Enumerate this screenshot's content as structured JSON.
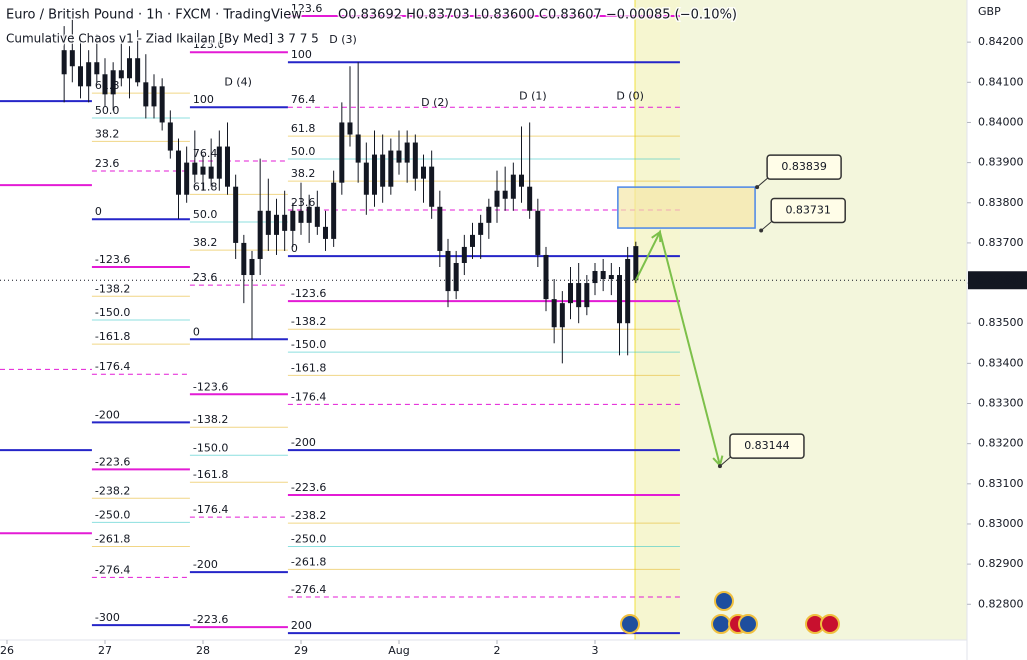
{
  "chart_data": {
    "type": "candlestick",
    "title": "Euro / British Pound · 1h · FXCM · TradingView",
    "ohlc": "O0.83692 H0.83703 L0.83600 C0.83607 −0.00085 (−0.10%)",
    "subtitle": "Cumulative Chaos v1 - Ziad Ikailan [By Med] 3 7 7 5",
    "currency": "GBP",
    "color": "#131722",
    "x": [
      14,
      16,
      18,
      20,
      22,
      24,
      26,
      28,
      30,
      32,
      34,
      36,
      38,
      40,
      42,
      44,
      46,
      48,
      50,
      52,
      54,
      56,
      58,
      60,
      62,
      64,
      66,
      68,
      70,
      72,
      74,
      76,
      78,
      80,
      82,
      84,
      86,
      88,
      90,
      92,
      94,
      96,
      98,
      100,
      102,
      104,
      106,
      108,
      110,
      112,
      114,
      116,
      118,
      120,
      122,
      124,
      126,
      128,
      130,
      132,
      134,
      136,
      138,
      140,
      142,
      144,
      146,
      148,
      150,
      152,
      154
    ],
    "open": [
      0.8412,
      0.8418,
      0.8414,
      0.8409,
      0.8415,
      0.8412,
      0.8407,
      0.8413,
      0.8411,
      0.8416,
      0.841,
      0.8404,
      0.8409,
      0.84,
      0.8393,
      0.8382,
      0.839,
      0.8387,
      0.8389,
      0.8386,
      0.8394,
      0.8384,
      0.837,
      0.8362,
      0.8366,
      0.8378,
      0.8372,
      0.8377,
      0.8373,
      0.8378,
      0.8375,
      0.8379,
      0.8374,
      0.8371,
      0.8385,
      0.84,
      0.8397,
      0.839,
      0.8382,
      0.8392,
      0.8384,
      0.8393,
      0.839,
      0.8395,
      0.8386,
      0.8389,
      0.8379,
      0.8368,
      0.8358,
      0.8365,
      0.8369,
      0.8372,
      0.8375,
      0.8379,
      0.8383,
      0.8381,
      0.8387,
      0.8384,
      0.8378,
      0.8367,
      0.8356,
      0.8349,
      0.8355,
      0.836,
      0.8354,
      0.836,
      0.8363,
      0.8361,
      0.8362,
      0.835,
      0.83692
    ],
    "high": [
      0.8424,
      0.8426,
      0.8421,
      0.8418,
      0.8422,
      0.8416,
      0.8415,
      0.842,
      0.8419,
      0.8423,
      0.8417,
      0.8412,
      0.8411,
      0.8403,
      0.8396,
      0.8394,
      0.8398,
      0.8392,
      0.8396,
      0.8398,
      0.84,
      0.8387,
      0.8372,
      0.8368,
      0.8391,
      0.8386,
      0.8381,
      0.8383,
      0.838,
      0.8385,
      0.8382,
      0.8383,
      0.8378,
      0.8388,
      0.8405,
      0.8414,
      0.8415,
      0.8395,
      0.8398,
      0.8397,
      0.8396,
      0.8398,
      0.8398,
      0.8397,
      0.8392,
      0.8393,
      0.8383,
      0.8371,
      0.8368,
      0.8372,
      0.8375,
      0.8377,
      0.8381,
      0.8388,
      0.8389,
      0.839,
      0.8399,
      0.84,
      0.8381,
      0.8369,
      0.8361,
      0.8358,
      0.8364,
      0.8365,
      0.8362,
      0.8365,
      0.8366,
      0.8365,
      0.8364,
      0.8369,
      0.83703
    ],
    "low": [
      0.8405,
      0.841,
      0.8406,
      0.8405,
      0.841,
      0.8404,
      0.8403,
      0.8409,
      0.8406,
      0.8409,
      0.8401,
      0.8401,
      0.8398,
      0.8391,
      0.8376,
      0.838,
      0.8385,
      0.8383,
      0.8384,
      0.8383,
      0.8382,
      0.8366,
      0.8355,
      0.8346,
      0.8362,
      0.8368,
      0.8367,
      0.8368,
      0.8369,
      0.8372,
      0.837,
      0.8372,
      0.8368,
      0.8369,
      0.8382,
      0.8394,
      0.8385,
      0.8377,
      0.8379,
      0.838,
      0.8382,
      0.8387,
      0.8385,
      0.8383,
      0.838,
      0.8376,
      0.8364,
      0.8354,
      0.8356,
      0.8362,
      0.8366,
      0.8366,
      0.8371,
      0.8375,
      0.8378,
      0.8378,
      0.838,
      0.8376,
      0.8364,
      0.8353,
      0.8345,
      0.834,
      0.8351,
      0.835,
      0.8352,
      0.8357,
      0.8358,
      0.8357,
      0.8342,
      0.8342,
      0.836
    ],
    "close": [
      0.8418,
      0.8414,
      0.8409,
      0.8415,
      0.8412,
      0.8407,
      0.8413,
      0.8411,
      0.8416,
      0.841,
      0.8404,
      0.8409,
      0.84,
      0.8393,
      0.8382,
      0.839,
      0.8387,
      0.8389,
      0.8386,
      0.8394,
      0.8384,
      0.837,
      0.8362,
      0.8366,
      0.8378,
      0.8372,
      0.8377,
      0.8373,
      0.8378,
      0.8375,
      0.8379,
      0.8374,
      0.8371,
      0.8385,
      0.84,
      0.8397,
      0.839,
      0.8382,
      0.8392,
      0.8384,
      0.8393,
      0.839,
      0.8395,
      0.8386,
      0.8389,
      0.8379,
      0.8368,
      0.8358,
      0.8365,
      0.8369,
      0.8372,
      0.8375,
      0.8379,
      0.8383,
      0.8381,
      0.8387,
      0.8384,
      0.8378,
      0.8367,
      0.8356,
      0.8349,
      0.8355,
      0.836,
      0.8354,
      0.836,
      0.8363,
      0.8361,
      0.8362,
      0.835,
      0.8366,
      0.83607
    ],
    "xlim": [
      -1.71,
      235.1
    ],
    "ylim": [
      0.82711,
      0.84305
    ],
    "xticks": [
      {
        "value": 0,
        "label": "26"
      },
      {
        "value": 24,
        "label": "27"
      },
      {
        "value": 48,
        "label": "28"
      },
      {
        "value": 72,
        "label": "29"
      },
      {
        "value": 96,
        "label": "Aug"
      },
      {
        "value": 120,
        "label": "2"
      },
      {
        "value": 144,
        "label": "3"
      }
    ],
    "yticks": [
      {
        "value": 0.828,
        "label": "0.82800"
      },
      {
        "value": 0.829,
        "label": "0.82900"
      },
      {
        "value": 0.83,
        "label": "0.83000"
      },
      {
        "value": 0.831,
        "label": "0.83100"
      },
      {
        "value": 0.832,
        "label": "0.83200"
      },
      {
        "value": 0.833,
        "label": "0.83300"
      },
      {
        "value": 0.834,
        "label": "0.83400"
      },
      {
        "value": 0.835,
        "label": "0.83500"
      },
      {
        "value": 0.836,
        "label": "0.83600"
      },
      {
        "value": 0.837,
        "label": "0.83700"
      },
      {
        "value": 0.838,
        "label": "0.83800"
      },
      {
        "value": 0.839,
        "label": "0.83900"
      },
      {
        "value": 0.84,
        "label": "0.84000"
      },
      {
        "value": 0.841,
        "label": "0.84100"
      },
      {
        "value": 0.842,
        "label": "0.84200"
      }
    ],
    "last_price": 0.83607,
    "fib_groups": [
      {
        "x_range": [
          -1.71,
          20.8
        ],
        "levels": [
          {
            "price": 0.84053,
            "color": "#2525c8",
            "bold": true
          },
          {
            "price": 0.83844,
            "color": "#e31bd5",
            "bold": true
          },
          {
            "price": 0.83385,
            "color": "#e31bd5",
            "dashed": true
          },
          {
            "price": 0.83184,
            "color": "#2525c8",
            "bold": true
          },
          {
            "price": 0.82977,
            "color": "#e31bd5",
            "bold": true
          }
        ]
      },
      {
        "x_range": [
          20.8,
          44.8
        ],
        "levels": [
          {
            "label": "61.8",
            "price": 0.84073,
            "color": "#e6b422"
          },
          {
            "label": "50.0",
            "price": 0.84011,
            "color": "#2ec4c4"
          },
          {
            "label": "38.2",
            "price": 0.83953,
            "color": "#e6b422"
          },
          {
            "label": "23.6",
            "price": 0.83879,
            "color": "#e31bd5",
            "dashed": true
          },
          {
            "label": "0",
            "price": 0.83759,
            "color": "#2525c8",
            "bold": true
          },
          {
            "label": "-123.6",
            "price": 0.8364,
            "color": "#e31bd5",
            "bold": true
          },
          {
            "label": "-138.2",
            "price": 0.83567,
            "color": "#e6b422"
          },
          {
            "label": "-150.0",
            "price": 0.83508,
            "color": "#2ec4c4"
          },
          {
            "label": "-161.8",
            "price": 0.83448,
            "color": "#e6b422"
          },
          {
            "label": "-176.4",
            "price": 0.83373,
            "color": "#e31bd5",
            "dashed": true
          },
          {
            "label": "-200",
            "price": 0.83253,
            "color": "#2525c8",
            "bold": true
          },
          {
            "label": "-223.6",
            "price": 0.83136,
            "color": "#e31bd5",
            "bold": true
          },
          {
            "label": "-238.2",
            "price": 0.83064,
            "color": "#e6b422"
          },
          {
            "label": "-250.0",
            "price": 0.83004,
            "color": "#2ec4c4"
          },
          {
            "label": "-261.8",
            "price": 0.82944,
            "color": "#e6b422"
          },
          {
            "label": "-276.4",
            "price": 0.82867,
            "color": "#e31bd5",
            "dashed": true
          },
          {
            "label": "-300",
            "price": 0.82748,
            "color": "#2525c8",
            "bold": true
          }
        ]
      },
      {
        "x_range": [
          44.8,
          68.8
        ],
        "levels": [
          {
            "label": "123.6",
            "price": 0.84175,
            "color": "#e31bd5",
            "bold": true
          },
          {
            "label": "100",
            "price": 0.84038,
            "color": "#2525c8",
            "bold": true
          },
          {
            "label": "76.4",
            "price": 0.83904,
            "color": "#e31bd5",
            "dashed": true
          },
          {
            "label": "61.8",
            "price": 0.83821,
            "color": "#e6b422"
          },
          {
            "label": "50.0",
            "price": 0.83752,
            "color": "#2ec4c4"
          },
          {
            "label": "38.2",
            "price": 0.83682,
            "color": "#e6b422"
          },
          {
            "label": "23.6",
            "price": 0.83595,
            "color": "#e31bd5",
            "dashed": true
          },
          {
            "label": "0",
            "price": 0.8346,
            "color": "#2525c8",
            "bold": true
          },
          {
            "label": "-123.6",
            "price": 0.83323,
            "color": "#e31bd5",
            "bold": true
          },
          {
            "label": "-138.2",
            "price": 0.83241,
            "color": "#e6b422"
          },
          {
            "label": "-150.0",
            "price": 0.83171,
            "color": "#2ec4c4"
          },
          {
            "label": "-161.8",
            "price": 0.83104,
            "color": "#e6b422"
          },
          {
            "label": "-176.4",
            "price": 0.83017,
            "color": "#e31bd5",
            "dashed": true
          },
          {
            "label": "-200",
            "price": 0.8288,
            "color": "#2525c8",
            "bold": true
          },
          {
            "label": "-223.6",
            "price": 0.82743,
            "color": "#e31bd5",
            "bold": true
          }
        ]
      },
      {
        "x_range": [
          68.8,
          164.8
        ],
        "levels": [
          {
            "label": "123.6",
            "price": 0.84265,
            "color": "#e31bd5",
            "bold": true
          },
          {
            "label": "100",
            "price": 0.8415,
            "color": "#2525c8",
            "bold": true
          },
          {
            "label": "76.4",
            "price": 0.84038,
            "color": "#e31bd5",
            "dashed": true
          },
          {
            "label": "61.8",
            "price": 0.83966,
            "color": "#e6b422"
          },
          {
            "label": "50.0",
            "price": 0.83909,
            "color": "#2ec4c4"
          },
          {
            "label": "38.2",
            "price": 0.83854,
            "color": "#e6b422"
          },
          {
            "label": "23.6",
            "price": 0.83782,
            "color": "#e31bd5",
            "dashed": true
          },
          {
            "label": "0",
            "price": 0.83667,
            "color": "#2525c8",
            "bold": true
          },
          {
            "label": "-123.6",
            "price": 0.83555,
            "color": "#e31bd5",
            "bold": true
          },
          {
            "label": "-138.2",
            "price": 0.83485,
            "color": "#e6b422"
          },
          {
            "label": "-150.0",
            "price": 0.83428,
            "color": "#2ec4c4"
          },
          {
            "label": "-161.8",
            "price": 0.8337,
            "color": "#e6b422"
          },
          {
            "label": "-176.4",
            "price": 0.83298,
            "color": "#e31bd5",
            "dashed": true
          },
          {
            "label": "-200",
            "price": 0.83184,
            "color": "#2525c8",
            "bold": true
          },
          {
            "label": "-223.6",
            "price": 0.83072,
            "color": "#e31bd5",
            "bold": true
          },
          {
            "label": "-238.2",
            "price": 0.83002,
            "color": "#e6b422"
          },
          {
            "label": "-250.0",
            "price": 0.82944,
            "color": "#2ec4c4"
          },
          {
            "label": "-261.8",
            "price": 0.82887,
            "color": "#e6b422"
          },
          {
            "label": "-276.4",
            "price": 0.82818,
            "color": "#e31bd5",
            "dashed": true
          },
          {
            "label": "200",
            "price": 0.82728,
            "color": "#2525c8",
            "bold": true
          }
        ]
      }
    ],
    "markers": [
      {
        "label": "D (4)",
        "x": 56.6,
        "price": 0.841,
        "color": "#f09a1e"
      },
      {
        "label": "D (3)",
        "x": 82.3,
        "price": 0.84205,
        "color": "#f09a1e"
      },
      {
        "label": "D (2)",
        "x": 104.8,
        "price": 0.84048,
        "color": "#f09a1e"
      },
      {
        "label": "D (1)",
        "x": 128.8,
        "price": 0.84065,
        "color": "#f09a1e"
      },
      {
        "label": "D (0)",
        "x": 152.6,
        "price": 0.84065,
        "color": "#f09a1e"
      }
    ],
    "zone": {
      "x_range": [
        149.6,
        183.2
      ],
      "price_range": [
        0.83737,
        0.83839
      ],
      "color": "#4a86e8"
    },
    "projection": {
      "x": [
        154,
        159.9,
        174.6
      ],
      "y": [
        0.83607,
        0.83727,
        0.83146
      ],
      "color": "#7cc04a"
    },
    "callouts": [
      {
        "x": 183.7,
        "price": 0.83839
      },
      {
        "x": 184.7,
        "price": 0.83731
      },
      {
        "x": 174.6,
        "price": 0.83144
      }
    ]
  }
}
